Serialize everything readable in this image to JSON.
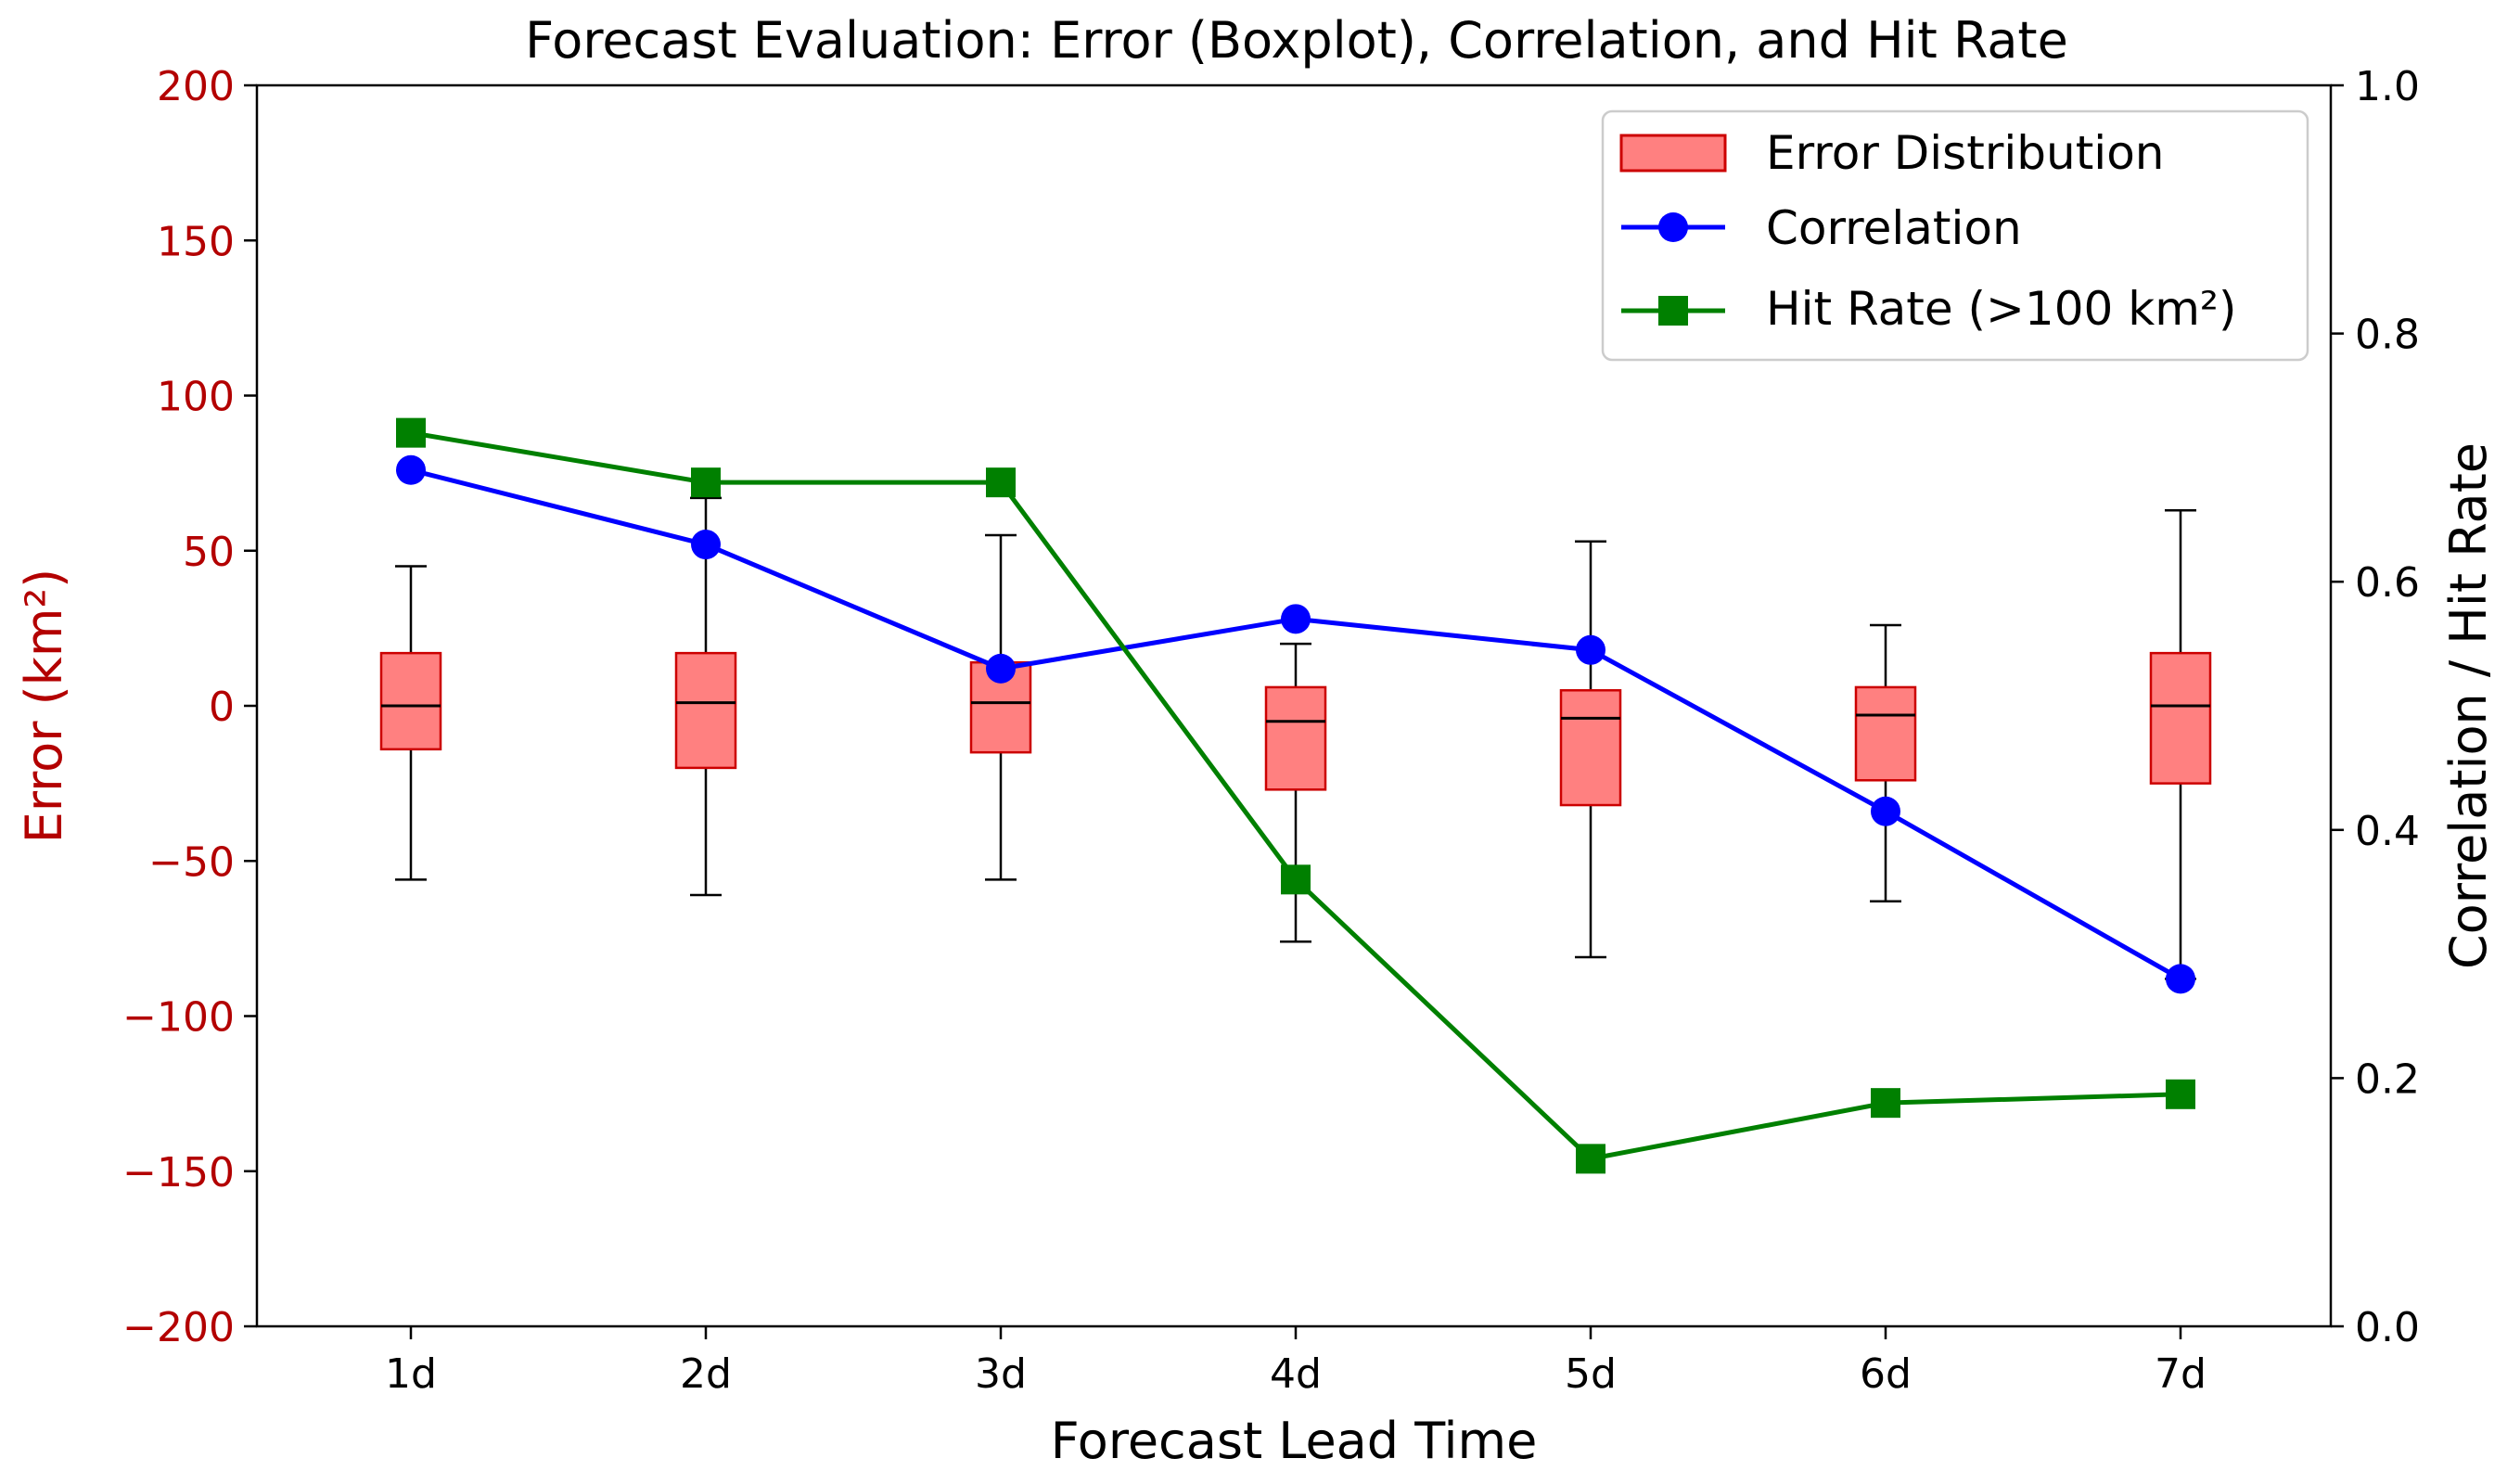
{
  "chart_data": {
    "type": "box+line",
    "title": "Forecast Evaluation: Error (Boxplot), Correlation, and Hit Rate",
    "xlabel": "Forecast Lead Time",
    "ylabel_left": "Error (km²)",
    "ylabel_right": "Correlation / Hit Rate",
    "categories": [
      "1d",
      "2d",
      "3d",
      "4d",
      "5d",
      "6d",
      "7d"
    ],
    "ylim_left": [
      -200,
      200
    ],
    "yticks_left": [
      -200,
      -150,
      -100,
      -50,
      0,
      50,
      100,
      150,
      200
    ],
    "ytick_labels_left": [
      "−200",
      "−150",
      "−100",
      "−50",
      "0",
      "50",
      "100",
      "150",
      "200"
    ],
    "ylim_right": [
      0.0,
      1.0
    ],
    "yticks_right": [
      0.0,
      0.2,
      0.4,
      0.6,
      0.8,
      1.0
    ],
    "ytick_labels_right": [
      "0.0",
      "0.2",
      "0.4",
      "0.6",
      "0.8",
      "1.0"
    ],
    "grid": false,
    "legend_position": "top-right",
    "boxplot": {
      "name": "Error Distribution",
      "whisker_low": [
        -56,
        -61,
        -56,
        -76,
        -81,
        -63,
        -88
      ],
      "q1": [
        -14,
        -20,
        -15,
        -27,
        -32,
        -24,
        -25
      ],
      "median": [
        0,
        1,
        1,
        -5,
        -4,
        -3,
        0
      ],
      "q3": [
        17,
        17,
        14,
        6,
        5,
        6,
        17
      ],
      "whisker_high": [
        45,
        67,
        55,
        20,
        53,
        26,
        63
      ]
    },
    "series": [
      {
        "name": "Correlation",
        "axis": "right",
        "marker": "circle",
        "values": [
          0.69,
          0.63,
          0.53,
          0.57,
          0.545,
          0.415,
          0.28
        ]
      },
      {
        "name": "Hit Rate (>100 km²)",
        "axis": "right",
        "marker": "square",
        "values": [
          0.72,
          0.68,
          0.68,
          0.36,
          0.135,
          0.18,
          0.187
        ]
      }
    ],
    "colors": {
      "left_axis": "#b30000",
      "box_fill": "#ff8080",
      "box_edge": "#cc0000",
      "whisker": "#000000",
      "correlation": "#0000ff",
      "hit_rate": "#008000"
    }
  }
}
